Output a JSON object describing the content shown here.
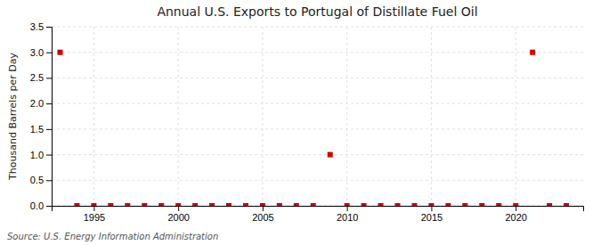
{
  "chart_data": {
    "type": "scatter",
    "title": "Annual U.S. Exports to Portugal of Distillate Fuel Oil",
    "ylabel": "Thousand Barrels per Day",
    "annotations": [
      "Source: U.S. Energy Information Administration"
    ],
    "x": [
      1993,
      1994,
      1995,
      1996,
      1997,
      1998,
      1999,
      2000,
      2001,
      2002,
      2003,
      2004,
      2005,
      2006,
      2007,
      2008,
      2009,
      2010,
      2011,
      2012,
      2013,
      2014,
      2015,
      2016,
      2017,
      2018,
      2019,
      2020,
      2021,
      2022,
      2023
    ],
    "values": [
      3.0,
      0.0,
      0.0,
      0.0,
      0.0,
      0.0,
      0.0,
      0.0,
      0.0,
      0.0,
      0.0,
      0.0,
      0.0,
      0.0,
      0.0,
      0.0,
      1.0,
      0.0,
      0.0,
      0.0,
      0.0,
      0.0,
      0.0,
      0.0,
      0.0,
      0.0,
      0.0,
      0.0,
      3.0,
      0.0,
      0.0
    ],
    "color": "#cc0000",
    "marker": "square",
    "xlim": [
      1992.5,
      2024.0
    ],
    "xticks": [
      1995,
      2000,
      2005,
      2010,
      2015,
      2020
    ],
    "ylim": [
      0.0,
      3.5
    ],
    "yticks": [
      {
        "value": 0.0,
        "label": "0.0"
      },
      0.5,
      {
        "value": 1.0,
        "label": "1.0"
      },
      1.5,
      {
        "value": 2.0,
        "label": "2.0"
      },
      2.5,
      {
        "value": 3.0,
        "label": "3.0"
      },
      3.5
    ],
    "grid": true
  }
}
